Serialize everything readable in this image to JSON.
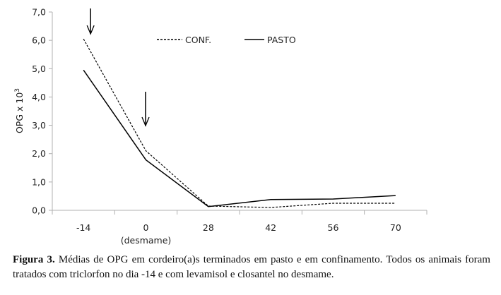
{
  "chart_data": {
    "type": "line",
    "title": "",
    "xlabel": "",
    "ylabel": "OPG x 10",
    "ylabel_sup": "3",
    "categories": [
      "-14",
      "0",
      "28",
      "42",
      "56",
      "70"
    ],
    "category_sublabels": [
      "",
      "(desmame)",
      "",
      "",
      "",
      ""
    ],
    "ylim": [
      0,
      7
    ],
    "yticks": [
      "0,0",
      "1,0",
      "2,0",
      "3,0",
      "4,0",
      "5,0",
      "6,0",
      "7,0"
    ],
    "grid": false,
    "legend_position": "top-center",
    "series": [
      {
        "name": "CONF.",
        "style": "dashed",
        "values": [
          6.05,
          2.1,
          0.15,
          0.1,
          0.25,
          0.25
        ]
      },
      {
        "name": "PASTO",
        "style": "solid",
        "values": [
          4.95,
          1.78,
          0.13,
          0.38,
          0.4,
          0.52
        ]
      }
    ],
    "annotations": [
      {
        "type": "arrow",
        "category": "-14"
      },
      {
        "type": "arrow",
        "category": "0"
      }
    ]
  },
  "caption": {
    "label": "Figura 3.",
    "text": " Médias de OPG em cordeiro(a)s terminados em pasto e em confinamento. Todos os animais foram tratados com triclorfon no dia -14 e com levamisol e closantel no desmame."
  },
  "colors": {
    "line": "#000000",
    "axis": "#b0b0b0"
  }
}
